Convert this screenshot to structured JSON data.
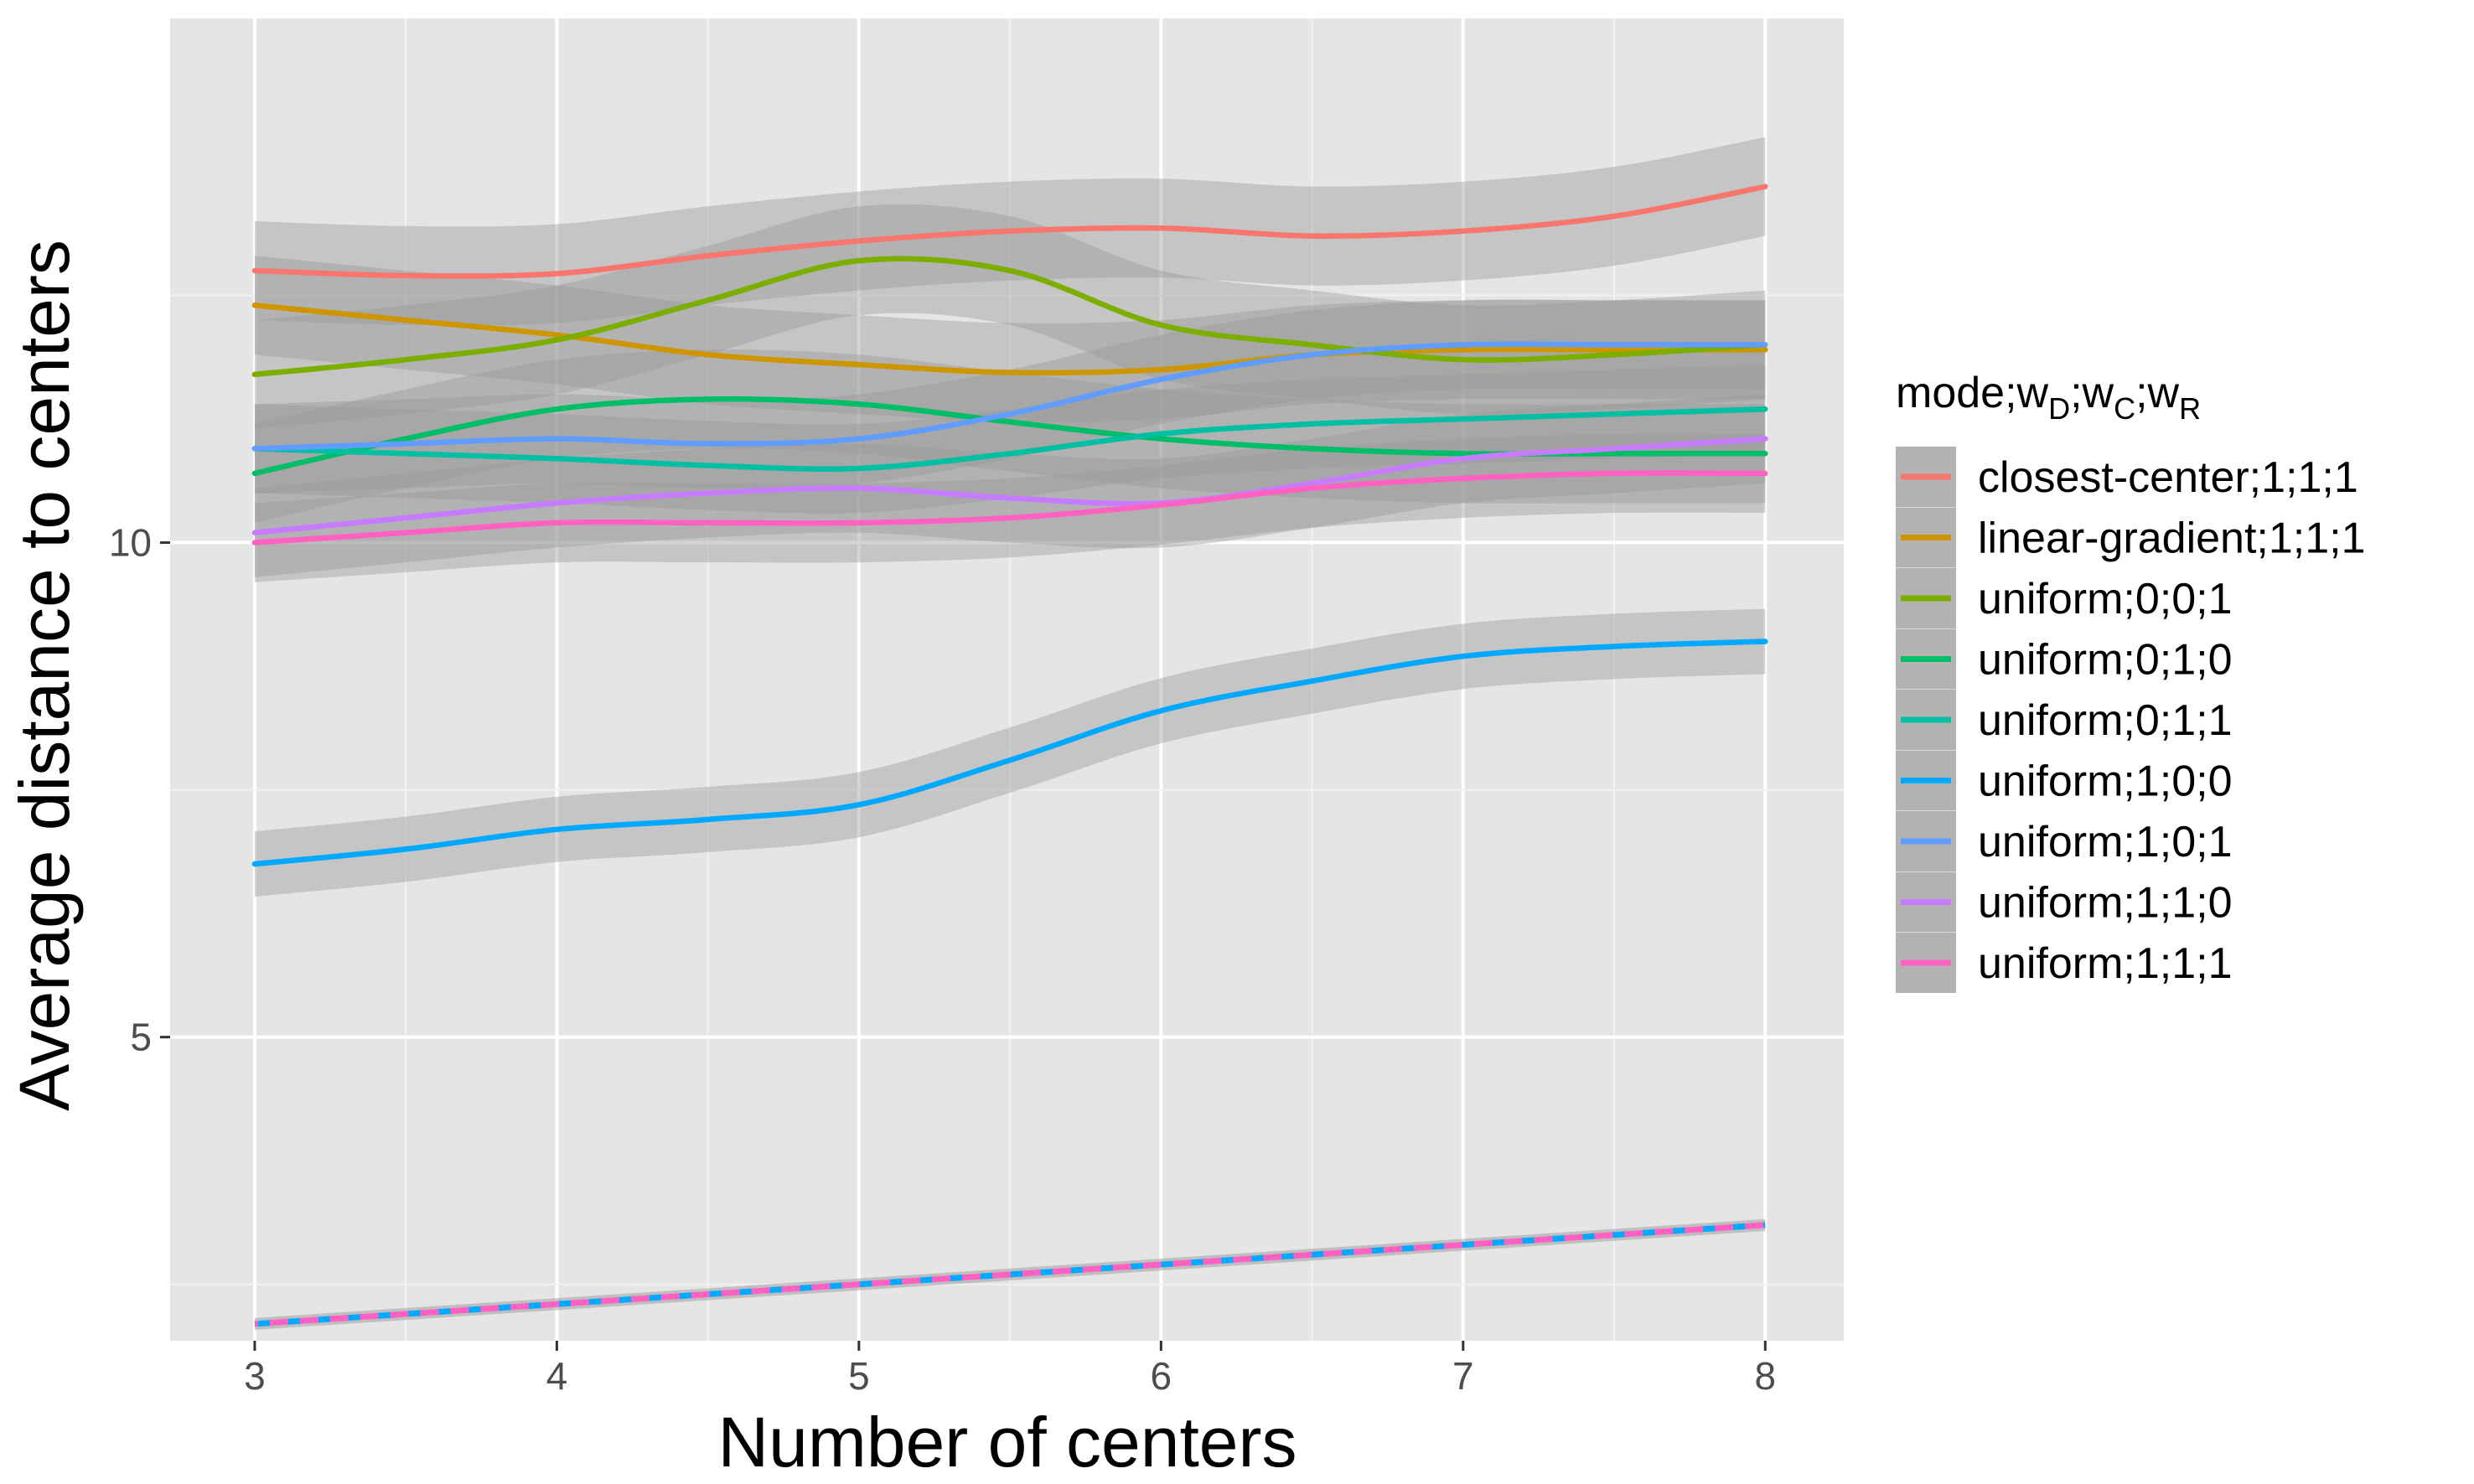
{
  "chart_data": {
    "type": "line",
    "xlabel": "Number of centers",
    "ylabel": "Average distance to centers",
    "xlim": [
      2.72,
      8.26
    ],
    "ylim": [
      1.93,
      15.3
    ],
    "x_ticks": [
      "3",
      "4",
      "5",
      "6",
      "7",
      "8"
    ],
    "y_ticks": [
      "5",
      "10"
    ],
    "y_tick_values": [
      5,
      10
    ],
    "grid": true,
    "legend": {
      "title": "mode;w_D;w_C;w_R",
      "title_parts": {
        "base": "mode;w",
        "d": "D",
        "sep1": ";w",
        "c": "C",
        "sep2": ";w",
        "r": "R"
      },
      "position": "right"
    },
    "x": [
      3,
      3.5,
      4,
      4.5,
      5,
      5.5,
      6,
      6.5,
      7,
      7.5,
      8
    ],
    "series": [
      {
        "name": "closest-center;1;1;1",
        "color": "#F8766D",
        "values": [
          12.75,
          12.7,
          12.72,
          12.9,
          13.05,
          13.15,
          13.18,
          13.1,
          13.15,
          13.3,
          13.6
        ],
        "band": 0.5
      },
      {
        "name": "linear-gradient;1;1;1",
        "color": "#CD9600",
        "values": [
          12.4,
          12.25,
          12.1,
          11.9,
          11.8,
          11.72,
          11.75,
          11.9,
          11.95,
          11.95,
          11.95
        ],
        "band": 0.5
      },
      {
        "name": "uniform;0;0;1",
        "color": "#7CAE00",
        "values": [
          11.7,
          11.85,
          12.05,
          12.45,
          12.85,
          12.75,
          12.2,
          12.0,
          11.85,
          11.9,
          12.0
        ],
        "band": 0.55
      },
      {
        "name": "uniform;0;1;0",
        "color": "#00BE67",
        "values": [
          10.7,
          11.05,
          11.35,
          11.45,
          11.4,
          11.22,
          11.05,
          10.95,
          10.9,
          10.9,
          10.9
        ],
        "band": 0.5
      },
      {
        "name": "uniform;0;1;1",
        "color": "#00BFA3",
        "values": [
          10.95,
          10.9,
          10.85,
          10.78,
          10.75,
          10.9,
          11.1,
          11.2,
          11.25,
          11.3,
          11.35
        ],
        "band": 0.45
      },
      {
        "name": "uniform;1;0;0",
        "color": "#00A9FF",
        "values": [
          6.75,
          6.9,
          7.1,
          7.2,
          7.35,
          7.8,
          8.3,
          8.6,
          8.85,
          8.95,
          9.0
        ],
        "band": 0.33
      },
      {
        "name": "uniform;1;0;1",
        "color": "#619CFF",
        "values": [
          10.95,
          11.0,
          11.05,
          11.0,
          11.05,
          11.3,
          11.65,
          11.9,
          12.0,
          12.0,
          12.0
        ],
        "band": 0.45
      },
      {
        "name": "uniform;1;1;0",
        "color": "#C77CFF",
        "values": [
          10.1,
          10.25,
          10.4,
          10.5,
          10.55,
          10.45,
          10.4,
          10.6,
          10.85,
          10.95,
          11.05
        ],
        "band": 0.45
      },
      {
        "name": "uniform;1;1;1",
        "color": "#FF61C3",
        "values": [
          10.0,
          10.1,
          10.2,
          10.2,
          10.2,
          10.25,
          10.38,
          10.55,
          10.65,
          10.7,
          10.7
        ],
        "band": 0.4
      }
    ],
    "dashed_series": {
      "x": [
        3,
        8
      ],
      "values": [
        2.1,
        3.1
      ],
      "colors": [
        "#00A9FF",
        "#FF61C3"
      ]
    }
  }
}
